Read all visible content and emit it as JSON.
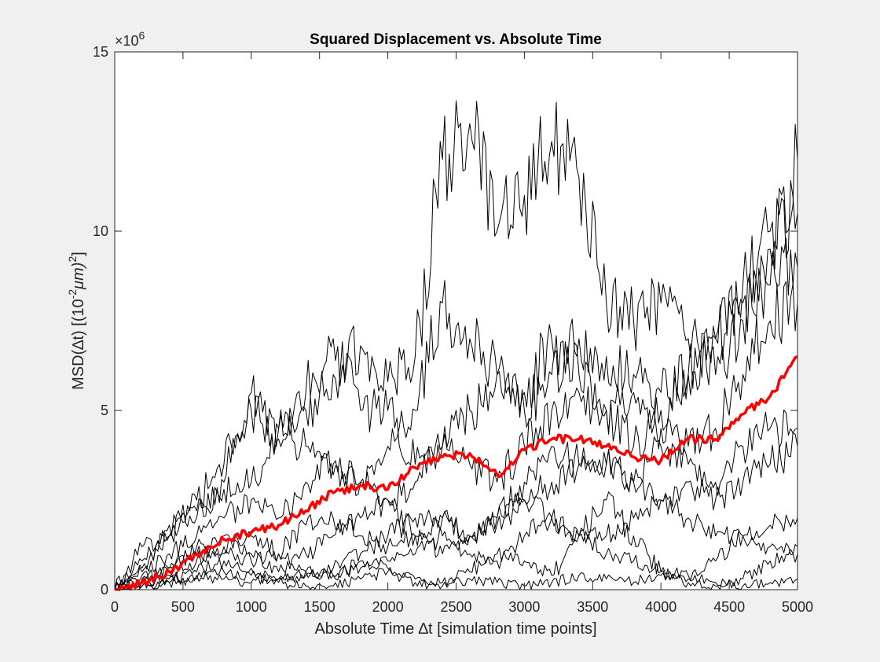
{
  "chart_data": {
    "type": "line",
    "title": "Squared Displacement vs. Absolute Time",
    "xlabel": "Absolute Time ∆t [simulation time points]",
    "ylabel_parts": {
      "pre": "MSD(∆t) [(10",
      "sup1": "-2",
      "mid": "μm)",
      "sup2": "2",
      "post": "]"
    },
    "y_exponent": {
      "base": "×10",
      "power": "6"
    },
    "xlim": [
      0,
      5000
    ],
    "ylim": [
      0,
      15
    ],
    "xticks": [
      0,
      500,
      1000,
      1500,
      2000,
      2500,
      3000,
      3500,
      4000,
      4500,
      5000
    ],
    "yticks": [
      0,
      5,
      10,
      15
    ],
    "grid": false,
    "legend": "none",
    "colors": {
      "trajectories": "#000000",
      "mean": "#ff0000"
    },
    "x": [
      0,
      200,
      400,
      600,
      800,
      1000,
      1200,
      1400,
      1600,
      1800,
      2000,
      2200,
      2400,
      2600,
      2800,
      3000,
      3200,
      3400,
      3600,
      3800,
      4000,
      4200,
      4400,
      4600,
      4800,
      5000
    ],
    "series": [
      {
        "values": [
          0,
          0.8,
          1.5,
          2.5,
          3.5,
          5.0,
          4.2,
          5.0,
          6.0,
          6.8,
          5.8,
          6.5,
          12.0,
          13.0,
          10.0,
          11.0,
          12.5,
          11.5,
          8.0,
          7.5,
          8.0,
          7.0,
          6.0,
          7.5,
          9.5,
          12.0
        ]
      },
      {
        "values": [
          0,
          0.6,
          1.8,
          2.0,
          3.0,
          5.5,
          4.5,
          4.0,
          3.2,
          3.0,
          4.0,
          5.0,
          8.0,
          7.0,
          6.0,
          5.0,
          6.0,
          7.0,
          6.5,
          6.0,
          5.5,
          6.0,
          7.0,
          8.5,
          10.0,
          10.5
        ]
      },
      {
        "values": [
          0,
          1.2,
          1.5,
          2.2,
          2.8,
          3.0,
          4.5,
          5.5,
          7.0,
          5.0,
          5.0,
          3.5,
          4.0,
          5.0,
          6.0,
          5.5,
          7.0,
          6.0,
          5.0,
          4.0,
          5.0,
          6.0,
          7.0,
          8.0,
          8.5,
          9.0
        ]
      },
      {
        "values": [
          0,
          0.5,
          1.0,
          1.5,
          2.0,
          2.5,
          2.0,
          3.0,
          3.5,
          3.0,
          2.5,
          3.0,
          4.0,
          3.5,
          3.0,
          4.0,
          5.0,
          5.5,
          5.0,
          5.5,
          4.5,
          4.0,
          4.5,
          6.0,
          7.5,
          8.0
        ]
      },
      {
        "values": [
          0,
          0.3,
          0.6,
          1.0,
          1.2,
          1.5,
          1.0,
          1.8,
          2.0,
          1.5,
          1.2,
          1.5,
          2.0,
          1.5,
          1.8,
          2.5,
          3.0,
          3.5,
          3.5,
          3.0,
          4.0,
          3.5,
          3.0,
          4.0,
          4.5,
          4.5
        ]
      },
      {
        "values": [
          0,
          0.2,
          0.4,
          0.8,
          1.5,
          1.0,
          0.5,
          1.0,
          1.5,
          2.0,
          2.5,
          1.5,
          1.0,
          1.5,
          2.0,
          3.0,
          4.0,
          3.5,
          3.5,
          3.0,
          2.5,
          3.0,
          2.5,
          3.0,
          3.5,
          4.0
        ]
      },
      {
        "values": [
          0,
          0.2,
          0.3,
          0.5,
          0.8,
          0.6,
          0.3,
          0.4,
          0.6,
          1.0,
          1.5,
          2.0,
          2.0,
          1.5,
          2.0,
          2.5,
          2.0,
          1.5,
          1.5,
          2.0,
          2.5,
          2.0,
          1.5,
          1.5,
          1.8,
          2.0
        ]
      },
      {
        "values": [
          0,
          0.4,
          0.6,
          1.2,
          1.0,
          0.8,
          1.0,
          0.5,
          0.4,
          0.8,
          0.6,
          0.3,
          0.2,
          0.5,
          1.0,
          0.8,
          0.4,
          1.5,
          2.5,
          1.5,
          0.5,
          0.3,
          0.8,
          1.5,
          1.2,
          1.2
        ]
      },
      {
        "values": [
          0,
          0.1,
          0.2,
          0.3,
          0.5,
          0.4,
          0.2,
          0.1,
          0.1,
          0.3,
          0.5,
          0.2,
          0.1,
          0.3,
          0.2,
          0.1,
          0.2,
          0.4,
          0.3,
          0.2,
          0.4,
          0.2,
          0.1,
          0.3,
          0.8,
          1.0
        ]
      },
      {
        "values": [
          0,
          0.1,
          0.2,
          0.4,
          0.3,
          0.2,
          0.3,
          0.5,
          0.4,
          0.6,
          0.8,
          1.0,
          1.5,
          1.0,
          0.8,
          1.5,
          2.0,
          1.5,
          1.0,
          0.8,
          0.5,
          0.4,
          0.2,
          0.1,
          0.2,
          0.3
        ]
      },
      {
        "values": [
          0,
          0.2,
          0.5,
          1.0,
          1.4,
          1.6,
          1.8,
          2.2,
          2.7,
          2.9,
          2.8,
          3.4,
          3.7,
          3.8,
          3.2,
          3.9,
          4.2,
          4.2,
          4.0,
          3.7,
          3.6,
          4.2,
          4.2,
          4.9,
          5.4,
          6.5
        ],
        "role": "mean"
      }
    ]
  }
}
